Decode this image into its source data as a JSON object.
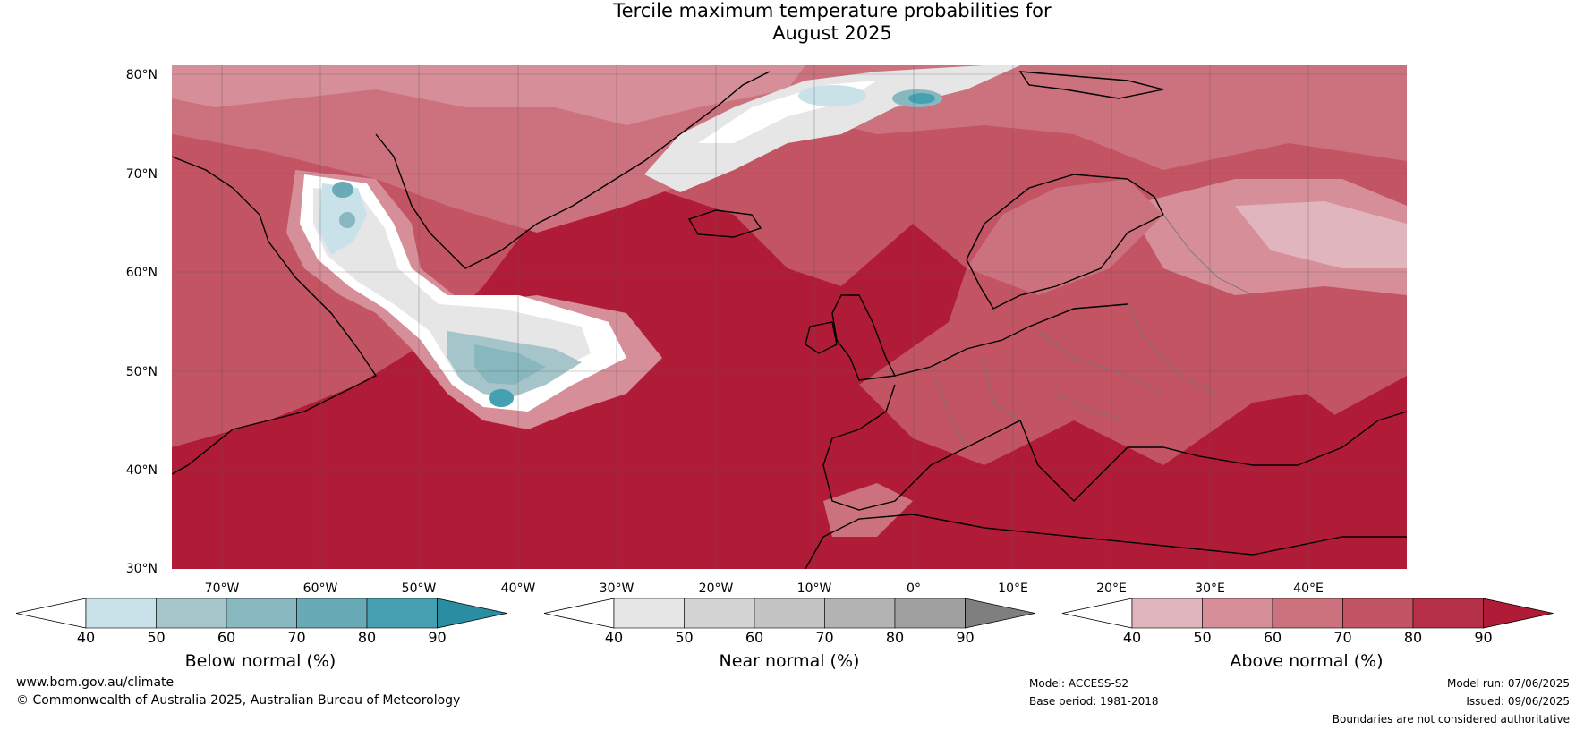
{
  "title": {
    "line1": "Tercile maximum temperature probabilities for",
    "line2": "August 2025"
  },
  "map": {
    "lat_labels": [
      "80°N",
      "70°N",
      "60°N",
      "50°N",
      "40°N",
      "30°N"
    ],
    "lon_labels": [
      "70°W",
      "60°W",
      "50°W",
      "40°W",
      "30°W",
      "20°W",
      "10°W",
      "0°",
      "10°E",
      "20°E",
      "30°E",
      "40°E"
    ],
    "region": "North Atlantic and Europe, 30°N–80°N"
  },
  "colorbars": [
    {
      "name": "below",
      "label": "Below normal (%)",
      "ticks": [
        "40",
        "50",
        "60",
        "70",
        "80",
        "90"
      ],
      "colors": [
        "#ffffff",
        "#c9e2e9",
        "#a6c5cb",
        "#89b7bf",
        "#69aab7",
        "#45a0b1",
        "#2a8ea3"
      ]
    },
    {
      "name": "near",
      "label": "Near normal (%)",
      "ticks": [
        "40",
        "50",
        "60",
        "70",
        "80",
        "90"
      ],
      "colors": [
        "#ffffff",
        "#e6e6e6",
        "#d3d3d3",
        "#c4c4c4",
        "#b3b3b3",
        "#a0a0a0",
        "#7f7f7f"
      ]
    },
    {
      "name": "above",
      "label": "Above normal (%)",
      "ticks": [
        "40",
        "50",
        "60",
        "70",
        "80",
        "90"
      ],
      "colors": [
        "#ffffff",
        "#e1b5bd",
        "#d68e99",
        "#cc727e",
        "#c25464",
        "#b6304a",
        "#b01c38"
      ]
    }
  ],
  "footer": {
    "url": "www.bom.gov.au/climate",
    "copyright": "© Commonwealth of Australia 2025, Australian Bureau of Meteorology",
    "model": "Model: ACCESS-S2",
    "base_period": "Base period: 1981-2018",
    "model_run": "Model run: 07/06/2025",
    "issued": "Issued: 09/06/2025",
    "disclaimer": "Boundaries are not considered authoritative"
  }
}
